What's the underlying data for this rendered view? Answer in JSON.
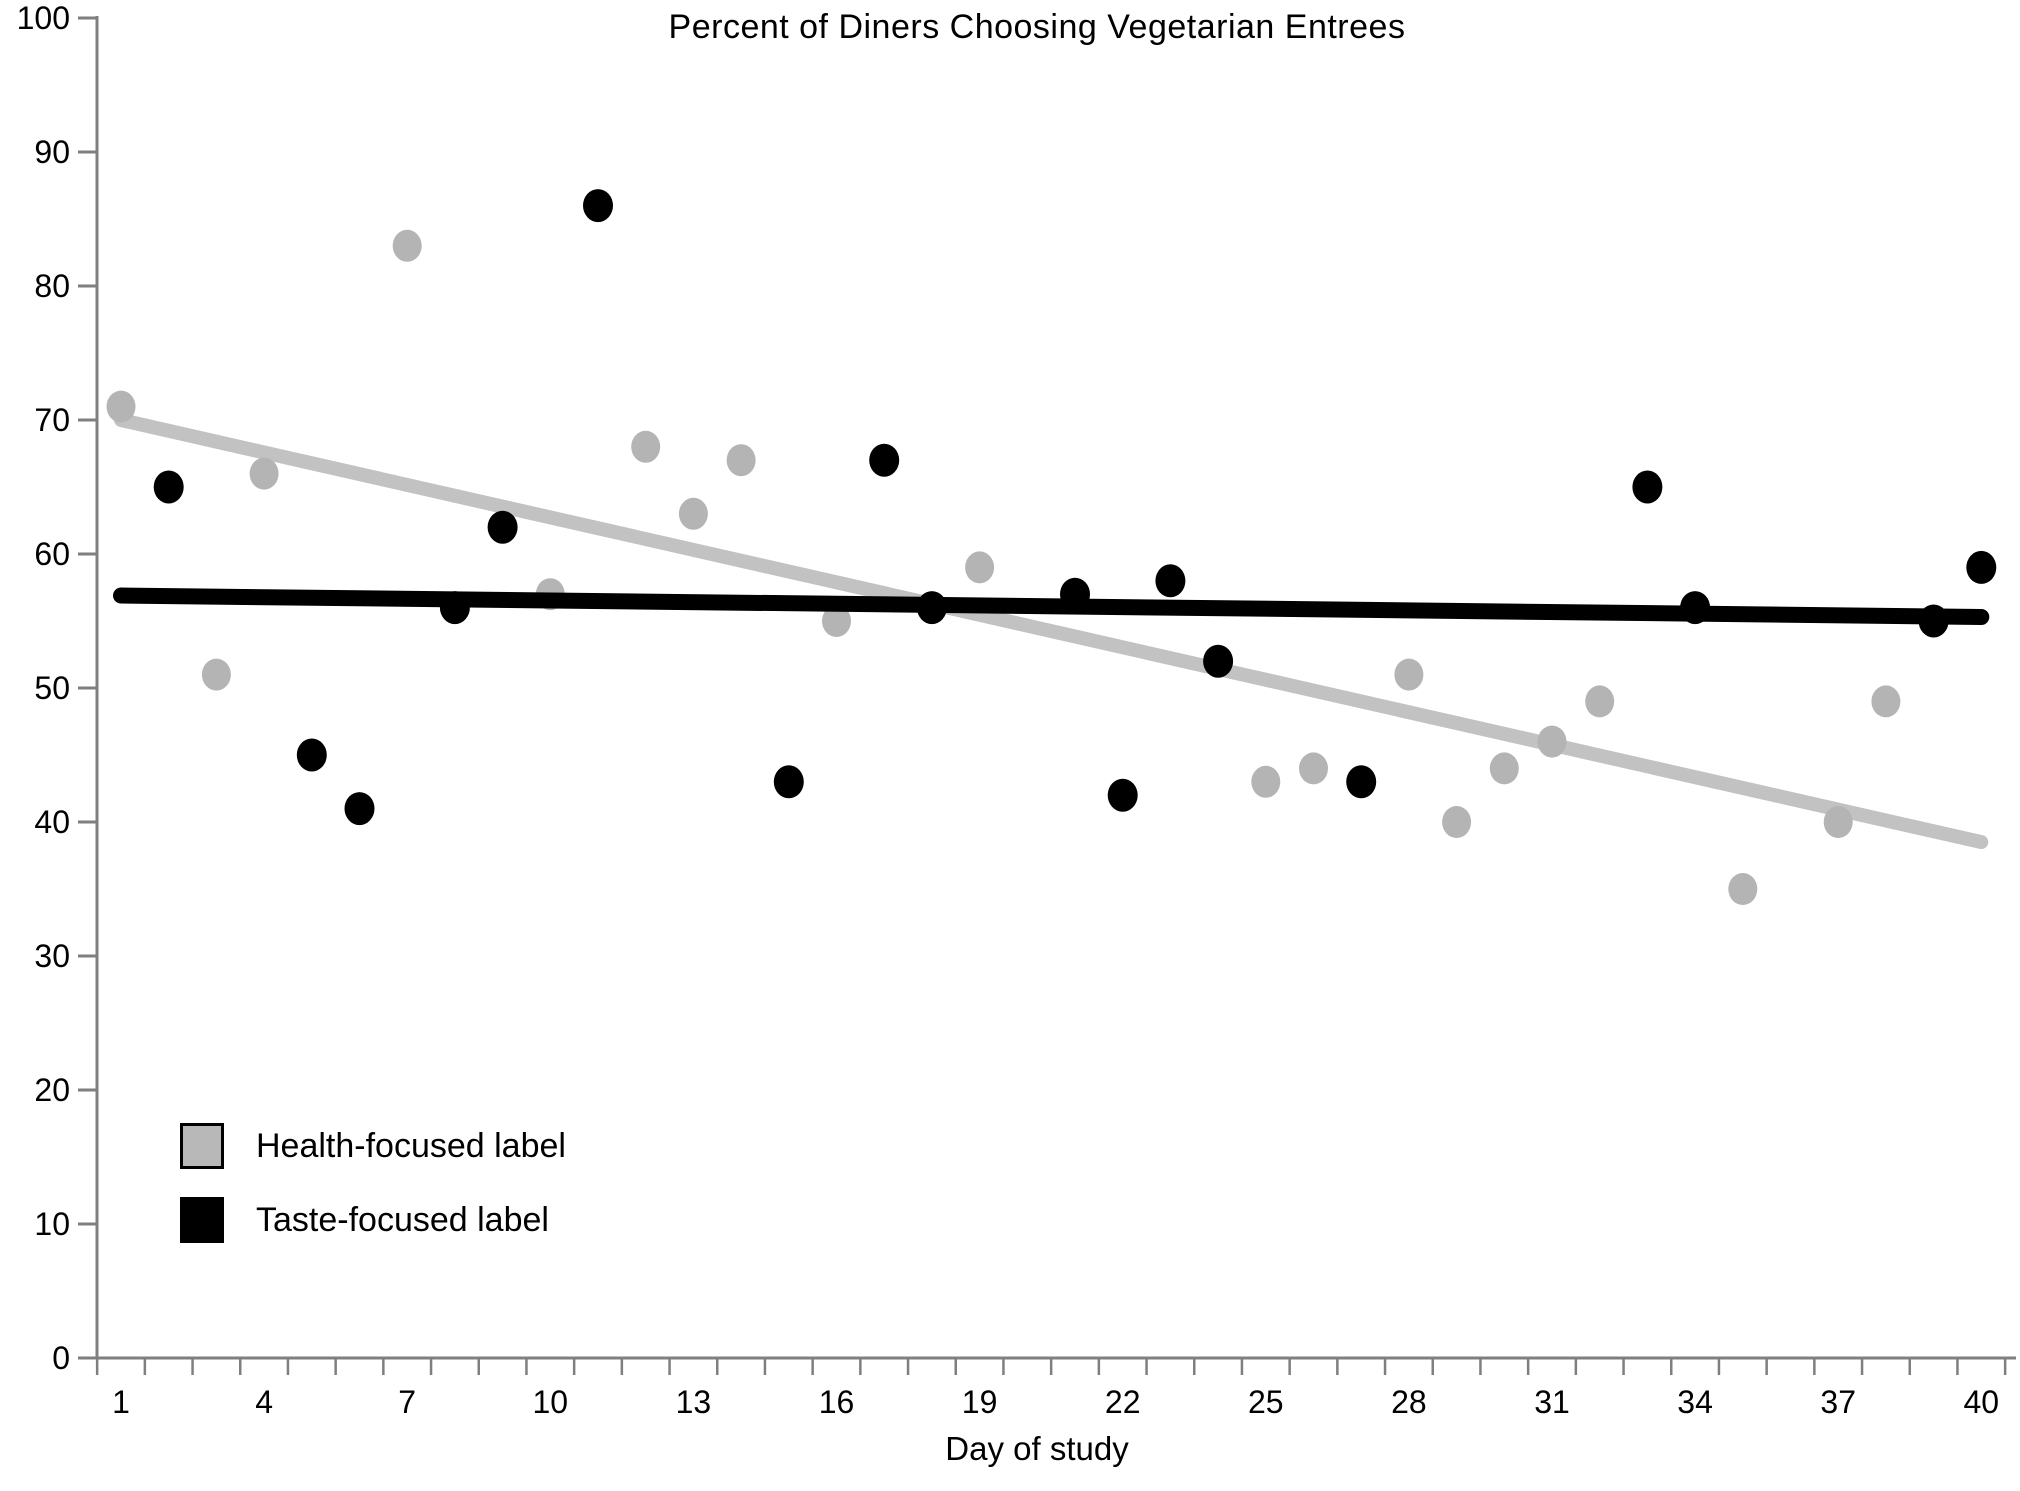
{
  "title": "Percent of Diners Choosing Vegetarian Entrees",
  "x_axis_label": "Day of study",
  "legend": {
    "entries": [
      {
        "label": "Health-focused label",
        "swatch_color": "#b8b8b8",
        "swatch_border": "#000000"
      },
      {
        "label": "Taste-focused label",
        "swatch_color": "#000000",
        "swatch_border": "#000000"
      }
    ],
    "position": "lower-left"
  },
  "colors": {
    "health_dot": "#b4b4b4",
    "health_trend": "#c2c2c2",
    "taste_dot": "#000000",
    "taste_trend": "#000000",
    "axis": "#7f7f7f",
    "text": "#000000",
    "background": "#ffffff"
  },
  "chart_data": {
    "type": "scatter",
    "title": "Percent of Diners Choosing Vegetarian Entrees",
    "xlabel": "Day of study",
    "ylabel": "",
    "xlim": [
      0.5,
      40.5
    ],
    "ylim": [
      0,
      100
    ],
    "grid": false,
    "legend_position": "lower-left",
    "x_ticks_every_day": true,
    "x_tick_label_values": [
      1,
      4,
      7,
      10,
      13,
      16,
      19,
      22,
      25,
      28,
      31,
      34,
      37,
      40
    ],
    "y_tick_values": [
      0,
      10,
      20,
      30,
      40,
      50,
      60,
      70,
      80,
      90,
      100
    ],
    "series": [
      {
        "name": "Health-focused label",
        "marker": "circle-gray",
        "points": [
          [
            1,
            71
          ],
          [
            3,
            51
          ],
          [
            4,
            66
          ],
          [
            7,
            83
          ],
          [
            10,
            57
          ],
          [
            12,
            68
          ],
          [
            13,
            63
          ],
          [
            14,
            67
          ],
          [
            16,
            55
          ],
          [
            19,
            59
          ],
          [
            25,
            43
          ],
          [
            26,
            44
          ],
          [
            28,
            51
          ],
          [
            29,
            40
          ],
          [
            30,
            44
          ],
          [
            31,
            46
          ],
          [
            32,
            49
          ],
          [
            35,
            35
          ],
          [
            37,
            40
          ],
          [
            38,
            49
          ]
        ],
        "trend_line": {
          "x1": 1,
          "y1": 70.0,
          "x2": 40,
          "y2": 38.5
        }
      },
      {
        "name": "Taste-focused label",
        "marker": "circle-black",
        "points": [
          [
            2,
            65
          ],
          [
            5,
            45
          ],
          [
            6,
            41
          ],
          [
            8,
            56
          ],
          [
            9,
            62
          ],
          [
            11,
            86
          ],
          [
            15,
            43
          ],
          [
            17,
            67
          ],
          [
            18,
            56
          ],
          [
            21,
            57
          ],
          [
            22,
            42
          ],
          [
            23,
            58
          ],
          [
            24,
            52
          ],
          [
            27,
            43
          ],
          [
            33,
            65
          ],
          [
            34,
            56
          ],
          [
            39,
            55
          ],
          [
            40,
            59
          ]
        ],
        "trend_line": {
          "x1": 1,
          "y1": 56.9,
          "x2": 40,
          "y2": 55.3
        }
      }
    ]
  }
}
